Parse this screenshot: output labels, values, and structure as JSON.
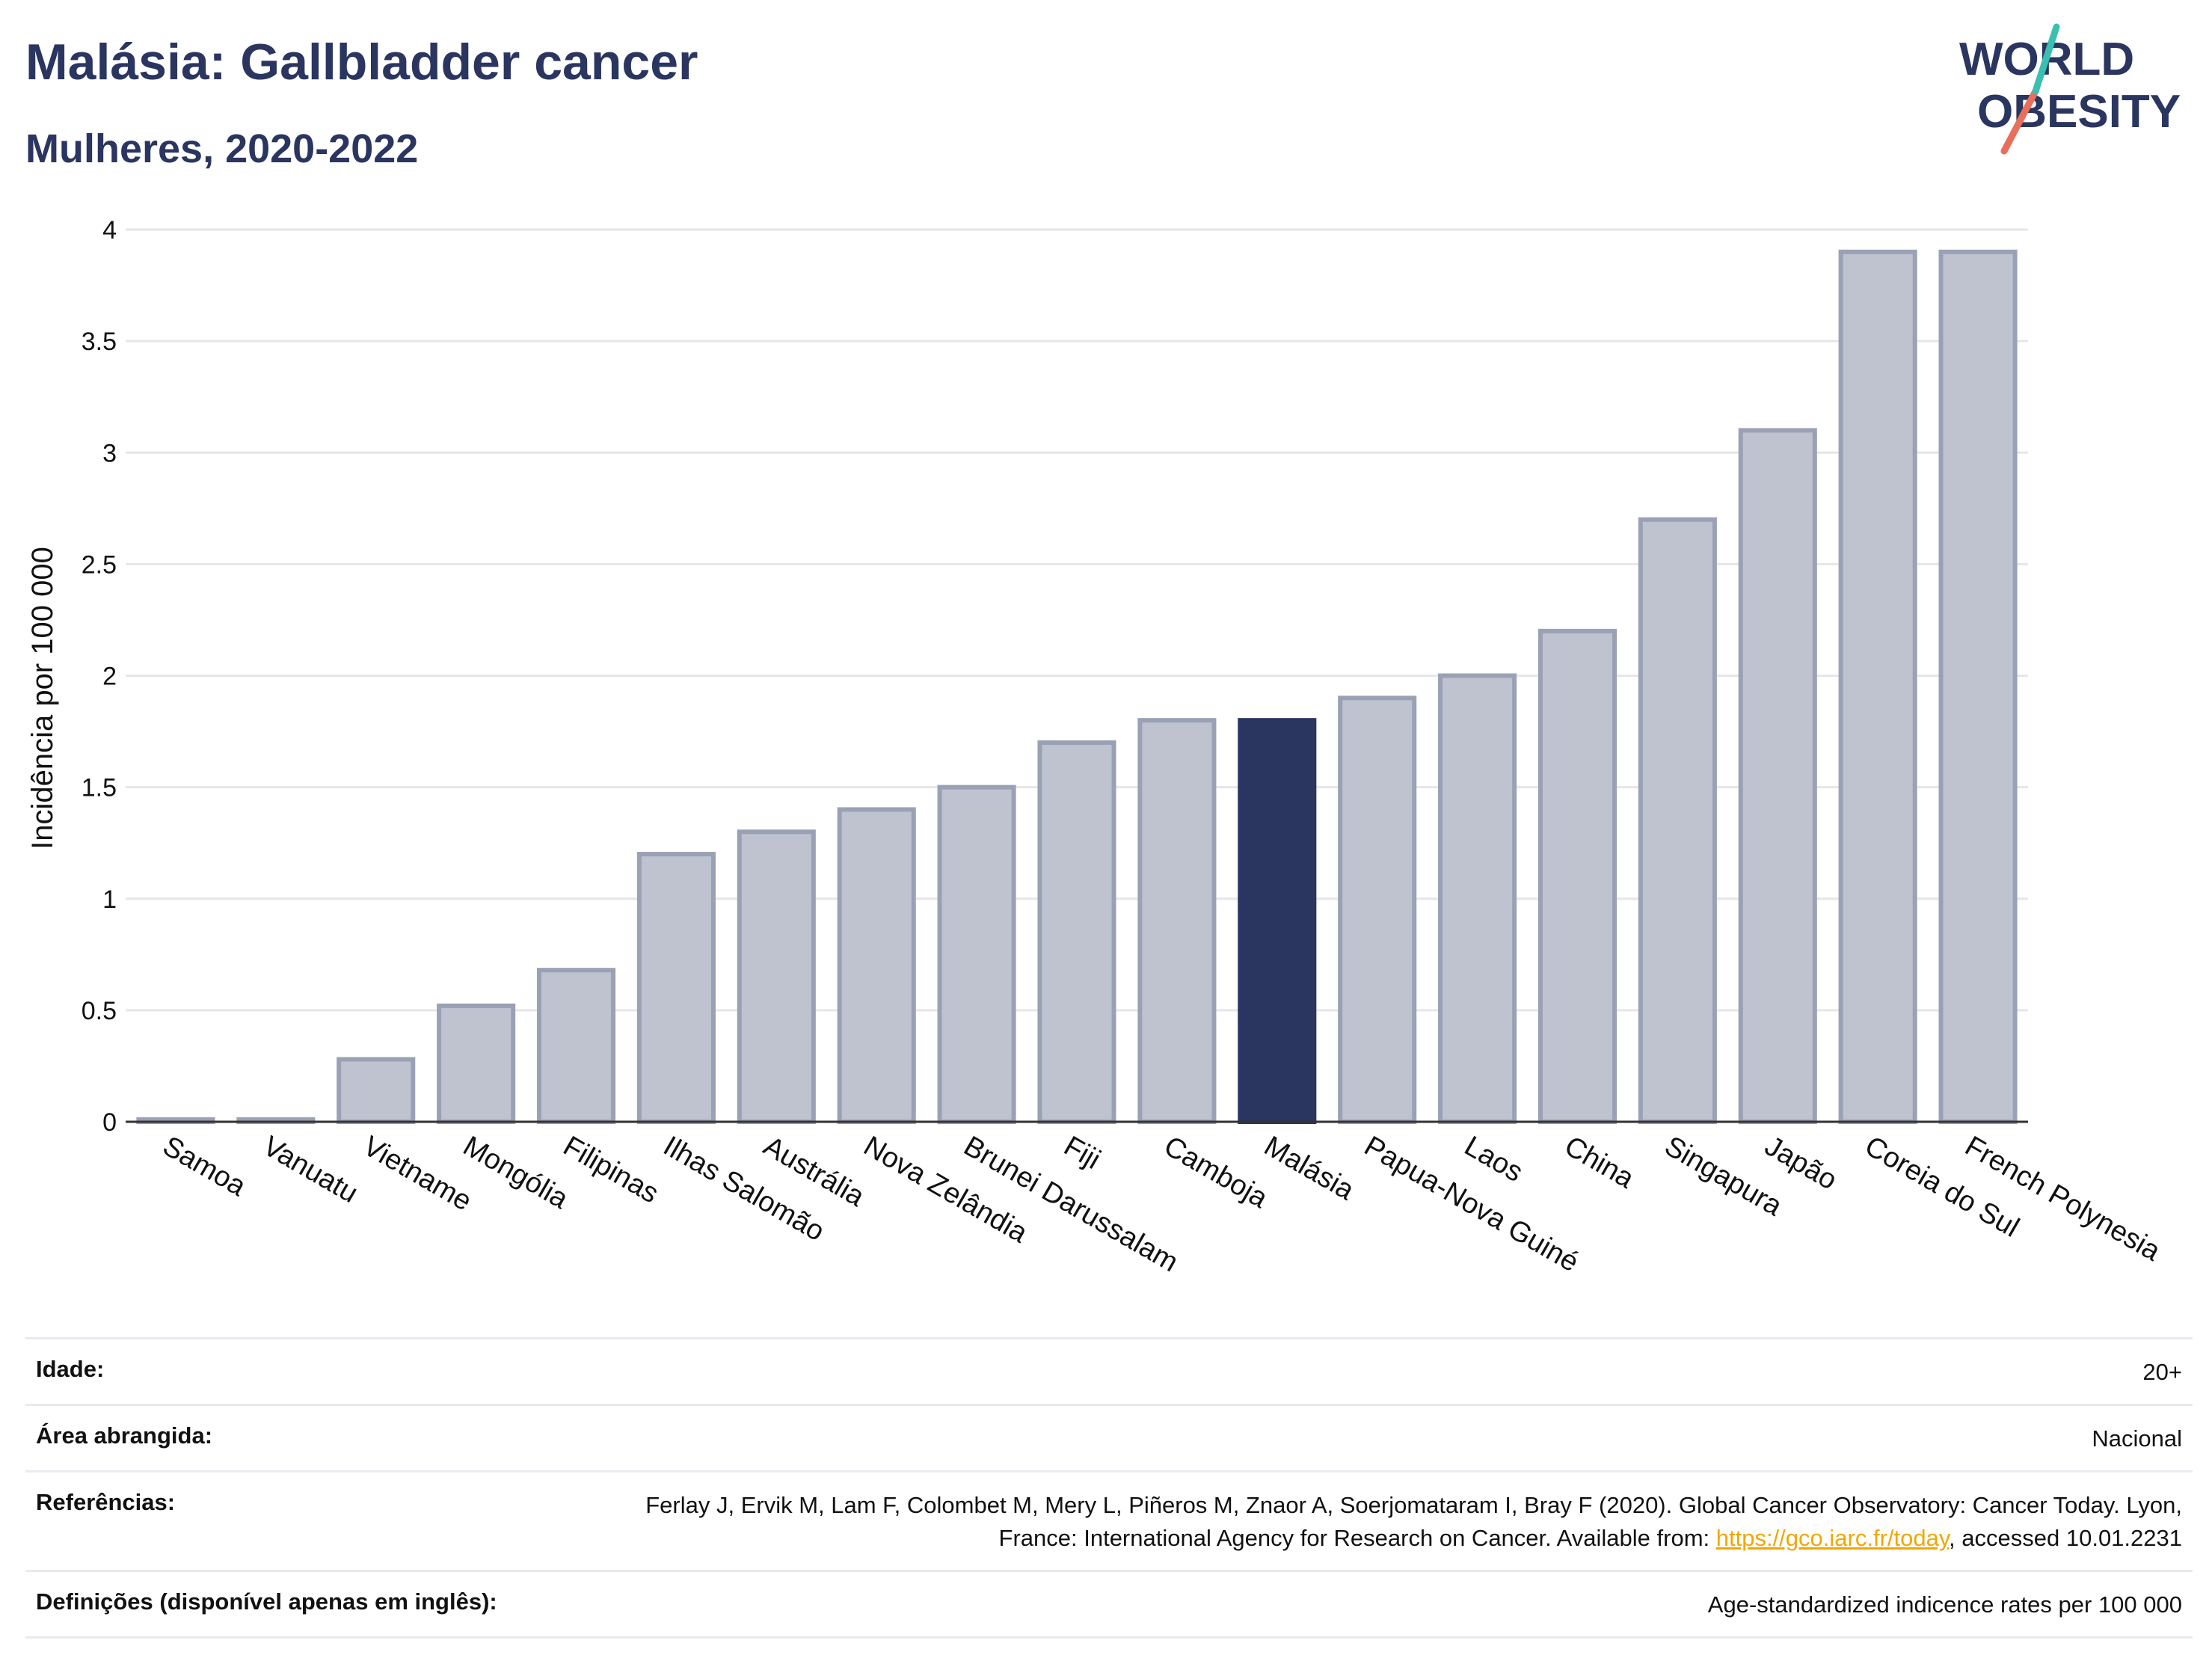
{
  "header": {
    "title": "Malásia: Gallbladder cancer",
    "subtitle": "Mulheres, 2020-2022"
  },
  "logo": {
    "line1": "WORLD",
    "line2": "OBESITY"
  },
  "colors": {
    "highlight": "#2a3560",
    "bar_fill": "#bfc3cf",
    "bar_stroke": "#9aa1b5",
    "grid": "#e6e6ea",
    "logo_teal": "#3bbfb0",
    "logo_coral": "#e8705a"
  },
  "chart_data": {
    "type": "bar",
    "categories": [
      "Samoa",
      "Vanuatu",
      "Vietname",
      "Mongólia",
      "Filipinas",
      "Ilhas Salomão",
      "Austrália",
      "Nova Zelândia",
      "Brunei Darussalam",
      "Fiji",
      "Camboja",
      "Malásia",
      "Papua-Nova Guiné",
      "Laos",
      "China",
      "Singapura",
      "Japão",
      "Coreia do Sul",
      "French Polynesia"
    ],
    "values": [
      0.01,
      0.01,
      0.28,
      0.52,
      0.68,
      1.2,
      1.3,
      1.4,
      1.5,
      1.7,
      1.8,
      1.8,
      1.9,
      2.0,
      2.2,
      2.7,
      3.1,
      3.9,
      3.9
    ],
    "highlight": "Malásia",
    "ylabel": "Incidência por 100 000",
    "xlabel": "",
    "ylim": [
      0,
      4
    ],
    "yticks": [
      0,
      0.5,
      1,
      1.5,
      2,
      2.5,
      3,
      3.5,
      4
    ],
    "ytick_labels": [
      "0",
      "0.5",
      "1",
      "1.5",
      "2",
      "2.5",
      "3",
      "3.5",
      "4"
    ],
    "grid": true
  },
  "info": {
    "age_label": "Idade:",
    "age_value": "20+",
    "area_label": "Área abrangida:",
    "area_value": "Nacional",
    "ref_label": "Referências:",
    "ref_text_1": "Ferlay J, Ervik M, Lam F, Colombet M, Mery L, Piñeros M, Znaor A, Soerjomataram I, Bray F (2020). Global Cancer Observatory: Cancer Today. Lyon, France: International Agency for Research on Cancer. Available from: ",
    "ref_link": "https://gco.iarc.fr/today",
    "ref_text_2": ", accessed 10.01.2231",
    "def_label": "Definições (disponível apenas em inglês):",
    "def_value": "Age-standardized indicence rates per 100 000"
  }
}
